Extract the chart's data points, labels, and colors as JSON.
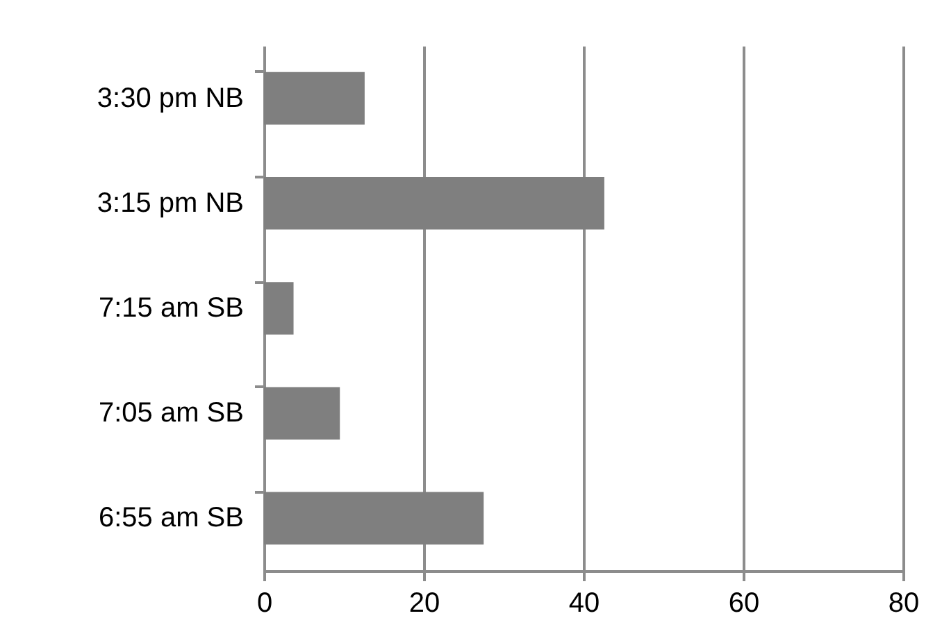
{
  "chart_data": {
    "type": "bar",
    "orientation": "horizontal",
    "categories": [
      "3:30 pm NB",
      "3:15 pm NB",
      "7:15 am SB",
      "7:05 am SB",
      "6:55 am SB"
    ],
    "values": [
      12.6,
      42.6,
      3.7,
      9.5,
      27.5
    ],
    "color": "#7f7f7f",
    "xlim": [
      0,
      80
    ],
    "xticks": [
      0,
      20,
      40,
      60,
      80
    ],
    "grid": "x"
  }
}
